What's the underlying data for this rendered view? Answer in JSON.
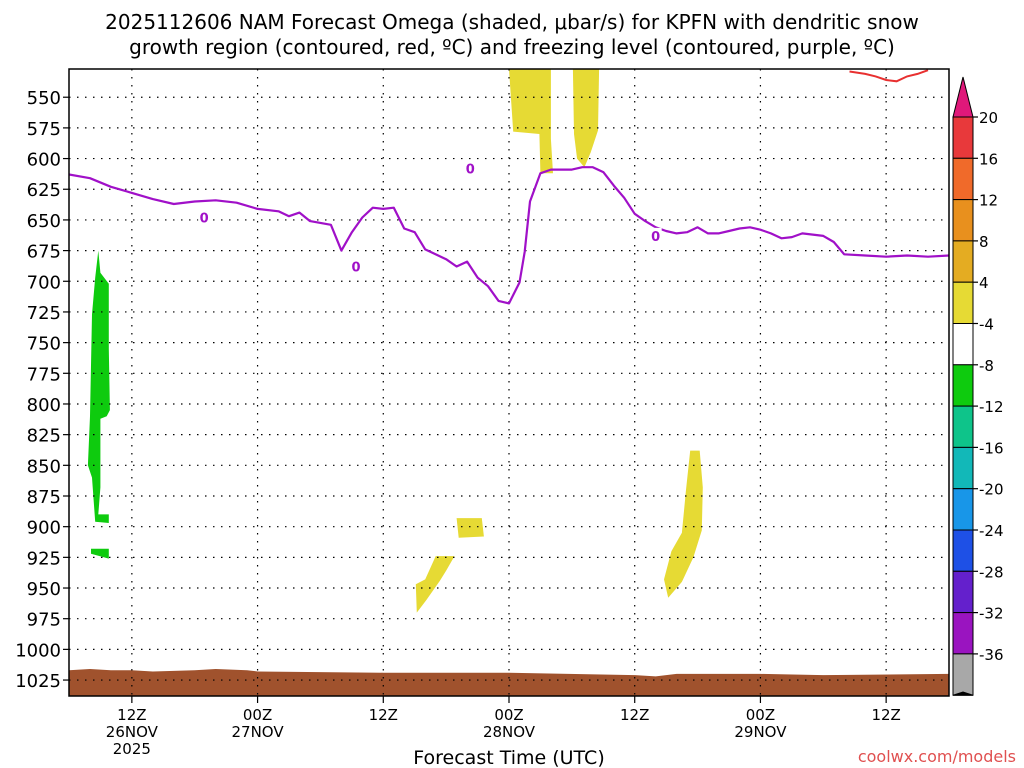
{
  "chart_data": {
    "type": "heatmap",
    "title_line1": "2025112606 NAM Forecast Omega (shaded, μbar/s) for KPFN with dendritic snow",
    "title_line2": "growth region (contoured, red, ºC) and freezing level (contoured, purple, ºC)",
    "xlabel": "Forecast Time (UTC)",
    "watermark": "coolwx.com/models",
    "x_range_hours": [
      0,
      84
    ],
    "y_range_hpa": [
      527,
      1038
    ],
    "y_ticks": [
      550,
      575,
      600,
      625,
      650,
      675,
      700,
      725,
      750,
      775,
      800,
      825,
      850,
      875,
      900,
      925,
      950,
      975,
      1000,
      1025
    ],
    "x_ticks": [
      {
        "hour": 6,
        "line1": "12Z",
        "line2": "26NOV",
        "line3": "2025"
      },
      {
        "hour": 18,
        "line1": "00Z",
        "line2": "27NOV",
        "line3": ""
      },
      {
        "hour": 30,
        "line1": "12Z",
        "line2": "",
        "line3": ""
      },
      {
        "hour": 42,
        "line1": "00Z",
        "line2": "28NOV",
        "line3": ""
      },
      {
        "hour": 54,
        "line1": "12Z",
        "line2": "",
        "line3": ""
      },
      {
        "hour": 66,
        "line1": "00Z",
        "line2": "29NOV",
        "line3": ""
      },
      {
        "hour": 78,
        "line1": "12Z",
        "line2": "",
        "line3": ""
      }
    ],
    "colorbar": {
      "labels": [
        "20",
        "16",
        "12",
        "8",
        "4",
        "-4",
        "-8",
        "-12",
        "-16",
        "-20",
        "-24",
        "-28",
        "-32",
        "-36"
      ],
      "colors": [
        "#e8393b",
        "#f06a2a",
        "#e8901e",
        "#e4ac22",
        "#e6da34",
        "#ffffff",
        "#0ecb0e",
        "#0ec48a",
        "#12b8b8",
        "#1896e8",
        "#1e50e6",
        "#6420cc",
        "#9a14c0",
        "#a8a8a8"
      ],
      "top_arrow_color": "#e0187a",
      "bottom_arrow_color": "#000000"
    },
    "freezing_level": {
      "label": "0",
      "color": "#a010c8",
      "points": [
        [
          0,
          613
        ],
        [
          2,
          616
        ],
        [
          4,
          623
        ],
        [
          6,
          628
        ],
        [
          8,
          633
        ],
        [
          10,
          637
        ],
        [
          12,
          635
        ],
        [
          14,
          634
        ],
        [
          16,
          636
        ],
        [
          18,
          641
        ],
        [
          20,
          643
        ],
        [
          21,
          647
        ],
        [
          22,
          644
        ],
        [
          23,
          651
        ],
        [
          25,
          654
        ],
        [
          26,
          675
        ],
        [
          27,
          660
        ],
        [
          28,
          648
        ],
        [
          29,
          640
        ],
        [
          30,
          641
        ],
        [
          31,
          640
        ],
        [
          32,
          657
        ],
        [
          33,
          660
        ],
        [
          34,
          674
        ],
        [
          36,
          682
        ],
        [
          37,
          688
        ],
        [
          38,
          684
        ],
        [
          39,
          697
        ],
        [
          40,
          704
        ],
        [
          41,
          716
        ],
        [
          42,
          718
        ],
        [
          43,
          701
        ],
        [
          43.5,
          676
        ],
        [
          44,
          635
        ],
        [
          45,
          612
        ],
        [
          46,
          609
        ],
        [
          48,
          609
        ],
        [
          49,
          607
        ],
        [
          50,
          607
        ],
        [
          51,
          611
        ],
        [
          52,
          622
        ],
        [
          53,
          632
        ],
        [
          54,
          645
        ],
        [
          55,
          651
        ],
        [
          56,
          656
        ],
        [
          57,
          659
        ],
        [
          58,
          661
        ],
        [
          59,
          660
        ],
        [
          60,
          656
        ],
        [
          61,
          661
        ],
        [
          62,
          661
        ],
        [
          63,
          659
        ],
        [
          64,
          657
        ],
        [
          65,
          656
        ],
        [
          66,
          658
        ],
        [
          67,
          661
        ],
        [
          68,
          665
        ],
        [
          69,
          664
        ],
        [
          70,
          661
        ],
        [
          71,
          662
        ],
        [
          72,
          663
        ],
        [
          73,
          668
        ],
        [
          74,
          678
        ],
        [
          76,
          679
        ],
        [
          78,
          680
        ],
        [
          80,
          679
        ],
        [
          82,
          680
        ],
        [
          84,
          679
        ]
      ]
    },
    "dgz_contour": {
      "color": "#e83030",
      "points": [
        [
          74.5,
          529
        ],
        [
          76,
          531
        ],
        [
          77,
          533
        ],
        [
          78,
          536
        ],
        [
          79,
          537
        ],
        [
          80,
          533
        ],
        [
          81,
          531
        ],
        [
          82,
          528
        ]
      ]
    },
    "ground": {
      "color": "#a0522d",
      "top_points": [
        [
          0,
          1017
        ],
        [
          2,
          1016
        ],
        [
          4,
          1017
        ],
        [
          6,
          1017
        ],
        [
          8,
          1018
        ],
        [
          12,
          1017
        ],
        [
          14,
          1016
        ],
        [
          17,
          1017
        ],
        [
          18,
          1018
        ],
        [
          30,
          1019
        ],
        [
          42,
          1019
        ],
        [
          54,
          1021
        ],
        [
          56,
          1022
        ],
        [
          58,
          1020
        ],
        [
          66,
          1020
        ],
        [
          72,
          1021
        ],
        [
          84,
          1020
        ]
      ]
    },
    "omega_regions": [
      {
        "value": -6,
        "color": "#0ecb0e",
        "points": [
          [
            2.0,
            810
          ],
          [
            2.2,
            727
          ],
          [
            2.5,
            697
          ],
          [
            2.8,
            675
          ],
          [
            3.0,
            693
          ],
          [
            3.8,
            702
          ],
          [
            3.8,
            755
          ],
          [
            3.9,
            805
          ],
          [
            3.6,
            810
          ],
          [
            3.0,
            812
          ],
          [
            3.0,
            868
          ],
          [
            2.8,
            890
          ],
          [
            3.8,
            890
          ],
          [
            3.8,
            897
          ],
          [
            2.5,
            896
          ],
          [
            2.2,
            860
          ],
          [
            1.8,
            850
          ]
        ]
      },
      {
        "value": -6,
        "color": "#0ecb0e",
        "points": [
          [
            2.1,
            918
          ],
          [
            3.8,
            918
          ],
          [
            3.8,
            926
          ],
          [
            2.1,
            922
          ]
        ]
      },
      {
        "value": 6,
        "color": "#e6da34",
        "points": [
          [
            42,
            527
          ],
          [
            46,
            527
          ],
          [
            46,
            584
          ],
          [
            46.2,
            612
          ],
          [
            45,
            612
          ],
          [
            44.9,
            580
          ],
          [
            42.4,
            578
          ]
        ]
      },
      {
        "value": 6,
        "color": "#e6da34",
        "points": [
          [
            48.1,
            527
          ],
          [
            50.6,
            527
          ],
          [
            50.5,
            577
          ],
          [
            49.8,
            595
          ],
          [
            49.2,
            607
          ],
          [
            48.5,
            600
          ],
          [
            48.2,
            580
          ]
        ]
      },
      {
        "value": 6,
        "color": "#e6da34",
        "points": [
          [
            38.0,
            893
          ],
          [
            39.4,
            893
          ],
          [
            39.6,
            908
          ],
          [
            37.2,
            909
          ],
          [
            37.0,
            893
          ]
        ]
      },
      {
        "value": 6,
        "color": "#e6da34",
        "points": [
          [
            35.0,
            924
          ],
          [
            36.8,
            924
          ],
          [
            36.0,
            936
          ],
          [
            35.4,
            944
          ],
          [
            34.1,
            960
          ],
          [
            33.2,
            970
          ],
          [
            33.1,
            947
          ],
          [
            34.0,
            943
          ]
        ]
      },
      {
        "value": 6,
        "color": "#e6da34",
        "points": [
          [
            59.3,
            838
          ],
          [
            60.2,
            838
          ],
          [
            60.5,
            868
          ],
          [
            60.4,
            903
          ],
          [
            59.6,
            925
          ],
          [
            58.5,
            945
          ],
          [
            57.2,
            958
          ],
          [
            56.8,
            943
          ],
          [
            57.5,
            920
          ],
          [
            58.5,
            905
          ],
          [
            58.9,
            870
          ]
        ]
      }
    ]
  }
}
